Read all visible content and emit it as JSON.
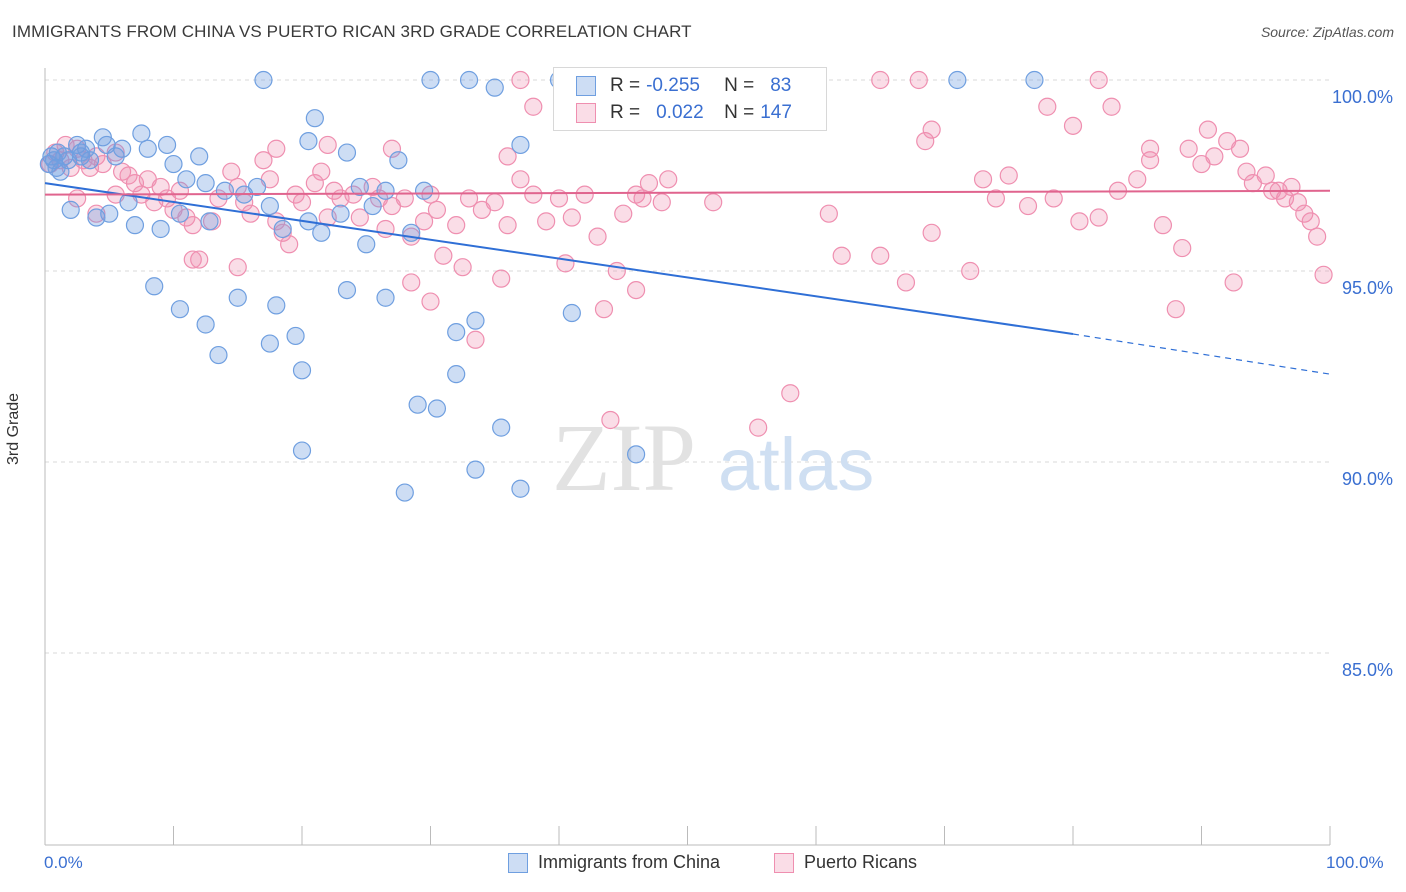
{
  "title": "IMMIGRANTS FROM CHINA VS PUERTO RICAN 3RD GRADE CORRELATION CHART",
  "source": "Source: ZipAtlas.com",
  "watermark": {
    "zip": "ZIP",
    "atlas": "atlas"
  },
  "legend": {
    "series1": {
      "r_label": "R =",
      "r_value": "-0.255",
      "n_label": "N =",
      "n_value": "83"
    },
    "series2": {
      "r_label": "R =",
      "r_value": "0.022",
      "n_label": "N =",
      "n_value": "147"
    }
  },
  "bottom_legend": {
    "series1": "Immigrants from China",
    "series2": "Puerto Ricans"
  },
  "x_axis": {
    "min_label": "0.0%",
    "max_label": "100.0%"
  },
  "colors": {
    "blue": "#6f9fe0",
    "blue_fill": "rgba(111,159,224,0.35)",
    "blue_line": "#2f6fd6",
    "pink": "#ef8fb0",
    "pink_fill": "rgba(239,143,176,0.30)",
    "pink_line": "#e0648e",
    "axis_text": "#3a6fd1",
    "grid": "#d9d9d9"
  },
  "chart_data": {
    "type": "scatter",
    "title": "IMMIGRANTS FROM CHINA VS PUERTO RICAN 3RD GRADE CORRELATION CHART",
    "xlabel": "",
    "ylabel": "3rd Grade",
    "xlim": [
      0,
      100
    ],
    "ylim": [
      80.0,
      100.8
    ],
    "yticks": [
      {
        "value": 100,
        "label": "100.0%"
      },
      {
        "value": 95,
        "label": "95.0%"
      },
      {
        "value": 90,
        "label": "90.0%"
      },
      {
        "value": 85,
        "label": "85.0%"
      }
    ],
    "grid": true,
    "series": [
      {
        "name": "Immigrants from China",
        "color": "#6f9fe0",
        "trend": {
          "x0": 0,
          "y0": 97.3,
          "x1": 80,
          "y1": 93.35,
          "dash_to_x": 100,
          "dash_to_y": 92.3
        },
        "points": [
          [
            0.3,
            97.8
          ],
          [
            0.5,
            98.0
          ],
          [
            0.7,
            97.9
          ],
          [
            0.9,
            97.7
          ],
          [
            1.0,
            98.1
          ],
          [
            1.2,
            97.6
          ],
          [
            1.5,
            98.0
          ],
          [
            1.8,
            97.9
          ],
          [
            2.5,
            98.3
          ],
          [
            2.8,
            98.0
          ],
          [
            3.2,
            98.2
          ],
          [
            3.5,
            97.9
          ],
          [
            4.5,
            98.5
          ],
          [
            4.8,
            98.3
          ],
          [
            5.5,
            98.0
          ],
          [
            6.0,
            98.2
          ],
          [
            7.5,
            98.6
          ],
          [
            8.0,
            98.2
          ],
          [
            9.5,
            98.3
          ],
          [
            10.0,
            97.8
          ],
          [
            11.0,
            97.4
          ],
          [
            12.0,
            98.0
          ],
          [
            12.5,
            97.3
          ],
          [
            14.0,
            97.1
          ],
          [
            15.5,
            97.0
          ],
          [
            16.5,
            97.2
          ],
          [
            6.5,
            96.8
          ],
          [
            5.0,
            96.5
          ],
          [
            4.0,
            96.4
          ],
          [
            2.0,
            96.6
          ],
          [
            10.5,
            96.5
          ],
          [
            12.8,
            96.3
          ],
          [
            17.5,
            96.7
          ],
          [
            18.5,
            96.1
          ],
          [
            20.5,
            96.3
          ],
          [
            21.5,
            96.0
          ],
          [
            23.0,
            96.5
          ],
          [
            24.5,
            97.2
          ],
          [
            25.5,
            96.7
          ],
          [
            26.5,
            97.1
          ],
          [
            28.5,
            96.0
          ],
          [
            9.0,
            96.1
          ],
          [
            7.0,
            96.2
          ],
          [
            8.5,
            94.6
          ],
          [
            10.5,
            94.0
          ],
          [
            12.5,
            93.6
          ],
          [
            15.0,
            94.3
          ],
          [
            18.0,
            94.1
          ],
          [
            19.5,
            93.3
          ],
          [
            20.0,
            92.4
          ],
          [
            13.5,
            92.8
          ],
          [
            17.5,
            93.1
          ],
          [
            23.5,
            94.5
          ],
          [
            25.0,
            95.7
          ],
          [
            26.5,
            94.3
          ],
          [
            32.0,
            93.4
          ],
          [
            33.5,
            93.7
          ],
          [
            41.0,
            93.9
          ],
          [
            29.0,
            91.5
          ],
          [
            30.5,
            91.4
          ],
          [
            32.0,
            92.3
          ],
          [
            35.5,
            90.9
          ],
          [
            33.5,
            89.8
          ],
          [
            37.0,
            89.3
          ],
          [
            28.0,
            89.2
          ],
          [
            20.0,
            90.3
          ],
          [
            46.0,
            90.2
          ],
          [
            20.5,
            98.4
          ],
          [
            21.0,
            99.0
          ],
          [
            23.5,
            98.1
          ],
          [
            27.5,
            97.9
          ],
          [
            17.0,
            100.0
          ],
          [
            30.0,
            100.0
          ],
          [
            33.0,
            100.0
          ],
          [
            35.0,
            99.8
          ],
          [
            40.0,
            100.0
          ],
          [
            42.0,
            100.0
          ],
          [
            49.0,
            100.0
          ],
          [
            71.0,
            100.0
          ],
          [
            77.0,
            100.0
          ],
          [
            37.0,
            98.3
          ],
          [
            29.5,
            97.1
          ],
          [
            2.8,
            98.1
          ]
        ]
      },
      {
        "name": "Puerto Ricans",
        "color": "#ef8fb0",
        "trend": {
          "x0": 0,
          "y0": 97.0,
          "x1": 100,
          "y1": 97.1
        },
        "points": [
          [
            0.4,
            97.8
          ],
          [
            0.8,
            98.1
          ],
          [
            1.2,
            97.9
          ],
          [
            1.6,
            98.3
          ],
          [
            2.0,
            97.7
          ],
          [
            2.5,
            98.2
          ],
          [
            3.0,
            97.9
          ],
          [
            3.5,
            97.7
          ],
          [
            4.0,
            98.0
          ],
          [
            4.5,
            97.8
          ],
          [
            5.5,
            98.1
          ],
          [
            6.0,
            97.6
          ],
          [
            6.5,
            97.5
          ],
          [
            7.0,
            97.3
          ],
          [
            7.5,
            97.0
          ],
          [
            8.0,
            97.4
          ],
          [
            8.5,
            96.8
          ],
          [
            9.0,
            97.2
          ],
          [
            9.5,
            96.9
          ],
          [
            10.0,
            96.6
          ],
          [
            10.5,
            97.1
          ],
          [
            11.0,
            96.4
          ],
          [
            11.5,
            96.2
          ],
          [
            12.0,
            95.3
          ],
          [
            13.0,
            96.3
          ],
          [
            13.5,
            96.9
          ],
          [
            14.5,
            97.6
          ],
          [
            15.0,
            97.2
          ],
          [
            15.5,
            96.8
          ],
          [
            16.0,
            96.5
          ],
          [
            17.0,
            97.9
          ],
          [
            17.5,
            97.4
          ],
          [
            18.0,
            96.3
          ],
          [
            18.5,
            96.0
          ],
          [
            19.0,
            95.7
          ],
          [
            19.5,
            97.0
          ],
          [
            20.0,
            96.8
          ],
          [
            21.0,
            97.3
          ],
          [
            22.0,
            96.4
          ],
          [
            22.5,
            97.1
          ],
          [
            23.0,
            96.9
          ],
          [
            24.0,
            97.0
          ],
          [
            24.5,
            96.4
          ],
          [
            25.5,
            97.2
          ],
          [
            26.0,
            96.9
          ],
          [
            26.5,
            96.1
          ],
          [
            27.0,
            96.7
          ],
          [
            28.0,
            96.9
          ],
          [
            28.5,
            95.9
          ],
          [
            29.5,
            96.3
          ],
          [
            30.0,
            97.0
          ],
          [
            30.5,
            96.6
          ],
          [
            31.0,
            95.4
          ],
          [
            32.0,
            96.2
          ],
          [
            32.5,
            95.1
          ],
          [
            33.0,
            96.9
          ],
          [
            34.0,
            96.6
          ],
          [
            35.0,
            96.8
          ],
          [
            35.5,
            94.8
          ],
          [
            36.0,
            96.2
          ],
          [
            37.0,
            97.4
          ],
          [
            38.0,
            97.0
          ],
          [
            39.0,
            96.3
          ],
          [
            40.0,
            96.9
          ],
          [
            40.5,
            95.2
          ],
          [
            41.0,
            96.4
          ],
          [
            42.0,
            97.0
          ],
          [
            43.0,
            95.9
          ],
          [
            43.5,
            94.0
          ],
          [
            44.5,
            95.0
          ],
          [
            45.0,
            96.5
          ],
          [
            46.0,
            97.0
          ],
          [
            46.5,
            96.9
          ],
          [
            47.0,
            97.3
          ],
          [
            48.0,
            96.8
          ],
          [
            48.5,
            97.4
          ],
          [
            2.5,
            96.9
          ],
          [
            4.0,
            96.5
          ],
          [
            5.5,
            97.0
          ],
          [
            22.0,
            98.3
          ],
          [
            27.0,
            98.2
          ],
          [
            36.0,
            98.0
          ],
          [
            38.0,
            99.3
          ],
          [
            18.0,
            98.2
          ],
          [
            21.5,
            97.6
          ],
          [
            15.0,
            95.1
          ],
          [
            11.5,
            95.3
          ],
          [
            28.5,
            94.7
          ],
          [
            30.0,
            94.2
          ],
          [
            33.5,
            93.2
          ],
          [
            44.0,
            91.1
          ],
          [
            55.5,
            90.9
          ],
          [
            58.0,
            91.8
          ],
          [
            46.0,
            94.5
          ],
          [
            52.0,
            96.8
          ],
          [
            61.0,
            96.5
          ],
          [
            62.0,
            95.4
          ],
          [
            65.0,
            95.4
          ],
          [
            67.0,
            94.7
          ],
          [
            72.0,
            95.0
          ],
          [
            74.0,
            96.9
          ],
          [
            75.0,
            97.5
          ],
          [
            69.0,
            96.0
          ],
          [
            73.0,
            97.4
          ],
          [
            76.5,
            96.7
          ],
          [
            78.5,
            96.9
          ],
          [
            80.5,
            96.3
          ],
          [
            82.0,
            96.4
          ],
          [
            83.5,
            97.1
          ],
          [
            85.0,
            97.4
          ],
          [
            86.0,
            97.9
          ],
          [
            87.0,
            96.2
          ],
          [
            88.0,
            94.0
          ],
          [
            88.5,
            95.6
          ],
          [
            89.0,
            98.2
          ],
          [
            90.0,
            97.8
          ],
          [
            91.0,
            98.0
          ],
          [
            92.0,
            98.4
          ],
          [
            93.0,
            98.2
          ],
          [
            93.5,
            97.6
          ],
          [
            94.0,
            97.3
          ],
          [
            95.0,
            97.5
          ],
          [
            96.0,
            97.1
          ],
          [
            96.5,
            96.9
          ],
          [
            97.0,
            97.2
          ],
          [
            97.5,
            96.8
          ],
          [
            98.0,
            96.5
          ],
          [
            98.5,
            96.3
          ],
          [
            99.0,
            95.9
          ],
          [
            99.5,
            94.9
          ],
          [
            92.5,
            94.7
          ],
          [
            90.5,
            98.7
          ],
          [
            86.0,
            98.2
          ],
          [
            80.0,
            98.8
          ],
          [
            78.0,
            99.3
          ],
          [
            68.5,
            98.4
          ],
          [
            69.0,
            98.7
          ],
          [
            37.0,
            100.0
          ],
          [
            42.0,
            100.0
          ],
          [
            49.5,
            100.0
          ],
          [
            53.5,
            100.0
          ],
          [
            59.0,
            100.0
          ],
          [
            65.0,
            100.0
          ],
          [
            68.0,
            100.0
          ],
          [
            82.0,
            100.0
          ],
          [
            83.0,
            99.3
          ],
          [
            95.5,
            97.1
          ]
        ]
      }
    ]
  }
}
